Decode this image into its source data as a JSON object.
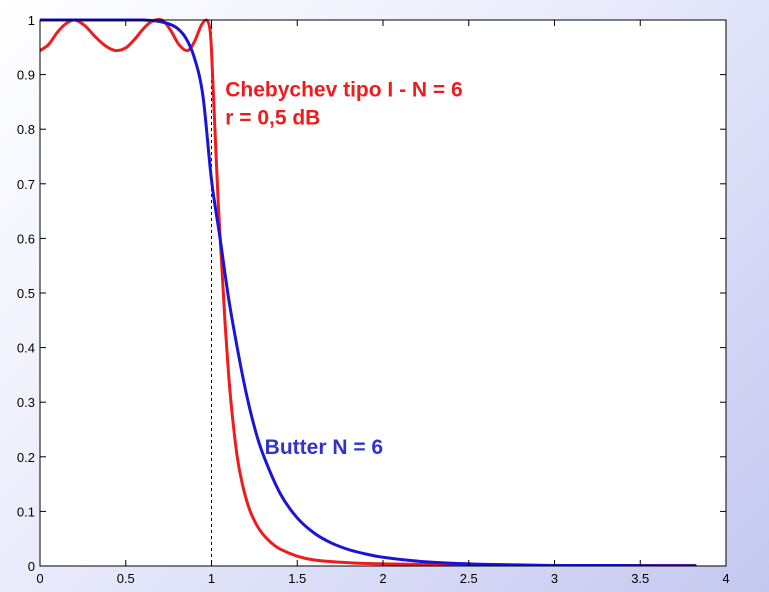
{
  "chart_data": {
    "type": "line",
    "title": "",
    "xlabel": "",
    "ylabel": "",
    "xlim": [
      0,
      4
    ],
    "ylim": [
      0,
      1
    ],
    "x_ticks": [
      "0",
      "0.5",
      "1",
      "1.5",
      "2",
      "2.5",
      "3",
      "3.5",
      "4"
    ],
    "y_ticks": [
      "0",
      "0.1",
      "0.2",
      "0.3",
      "0.4",
      "0.5",
      "0.6",
      "0.7",
      "0.8",
      "0.9",
      "1"
    ],
    "grid": false,
    "reference_line": {
      "x": 1,
      "style": "dashed",
      "color": "#000000"
    },
    "series": [
      {
        "name": "Chebychev tipo I - N = 6",
        "color": "#ee1c1c",
        "x": [
          0,
          0.05,
          0.1,
          0.15,
          0.2,
          0.26,
          0.32,
          0.38,
          0.44,
          0.5,
          0.55,
          0.6,
          0.65,
          0.71,
          0.76,
          0.81,
          0.86,
          0.9,
          0.94,
          0.97,
          0.99,
          1.0,
          1.02,
          1.04,
          1.06,
          1.08,
          1.1,
          1.12,
          1.15,
          1.18,
          1.22,
          1.26,
          1.3,
          1.35,
          1.4,
          1.5,
          1.6,
          1.8,
          2.0,
          2.5,
          3.0,
          3.5,
          3.82
        ],
        "values": [
          0.944,
          0.955,
          0.977,
          0.993,
          1.0,
          0.99,
          0.97,
          0.953,
          0.944,
          0.949,
          0.964,
          0.983,
          0.997,
          1.0,
          0.982,
          0.955,
          0.944,
          0.96,
          0.99,
          1.0,
          0.985,
          0.944,
          0.8,
          0.66,
          0.55,
          0.44,
          0.35,
          0.28,
          0.2,
          0.15,
          0.105,
          0.077,
          0.058,
          0.042,
          0.031,
          0.018,
          0.011,
          0.006,
          0.004,
          0.002,
          0.001,
          0.001,
          0.001
        ]
      },
      {
        "name": "Butter  N = 6",
        "color": "#1a14d6",
        "x": [
          0,
          0.2,
          0.4,
          0.5,
          0.55,
          0.6,
          0.65,
          0.7,
          0.75,
          0.8,
          0.85,
          0.9,
          0.95,
          1.0,
          1.05,
          1.1,
          1.15,
          1.2,
          1.25,
          1.3,
          1.4,
          1.5,
          1.6,
          1.7,
          1.8,
          1.9,
          2.0,
          2.2,
          2.4,
          2.6,
          2.8,
          3.0,
          3.3,
          3.6,
          3.82
        ],
        "values": [
          1.0,
          1.0,
          1.0,
          1.0,
          1.0,
          1.0,
          0.999,
          0.997,
          0.993,
          0.985,
          0.967,
          0.931,
          0.861,
          0.707,
          0.6,
          0.49,
          0.4,
          0.32,
          0.255,
          0.205,
          0.133,
          0.088,
          0.06,
          0.042,
          0.03,
          0.022,
          0.016,
          0.009,
          0.005,
          0.003,
          0.002,
          0.001,
          0.001,
          0.0005,
          0.0004
        ]
      }
    ],
    "annotations": [
      {
        "lines": [
          "Chebychev tipo I - N = 6",
          "r  =  0,5 dB"
        ],
        "color": "#ee1c1c",
        "x": 1.08,
        "y": 0.86
      },
      {
        "lines": [
          "Butter  N = 6"
        ],
        "color": "#3333cc",
        "x": 1.31,
        "y": 0.205
      }
    ]
  }
}
